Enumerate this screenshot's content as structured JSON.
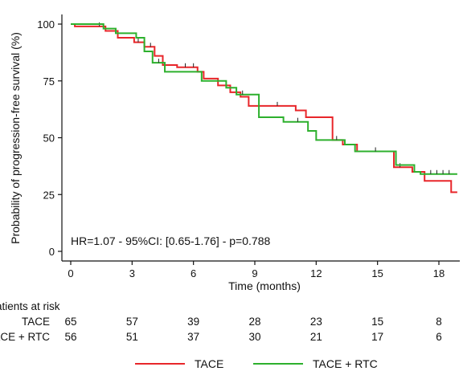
{
  "chart_data": {
    "type": "line",
    "subtype": "kaplan-meier step",
    "xlabel": "Time (months)",
    "ylabel": "Probability of progression-free survival (%)",
    "xlim": [
      0,
      19
    ],
    "ylim": [
      0,
      100
    ],
    "x_ticks": [
      0,
      3,
      6,
      9,
      12,
      15,
      18
    ],
    "y_ticks": [
      0,
      25,
      50,
      75,
      100
    ],
    "grid": false,
    "legend_position": "bottom",
    "annotation": "HR=1.07 - 95%CI: [0.65-1.76] - p=0.788",
    "series": [
      {
        "name": "TACE",
        "color": "#e8262a",
        "steps": [
          [
            0,
            100
          ],
          [
            0.2,
            99
          ],
          [
            1.7,
            97
          ],
          [
            2.3,
            94
          ],
          [
            3.1,
            92
          ],
          [
            3.6,
            90
          ],
          [
            4.1,
            86
          ],
          [
            4.5,
            82
          ],
          [
            5.2,
            81
          ],
          [
            6.2,
            79
          ],
          [
            6.5,
            76
          ],
          [
            7.2,
            73
          ],
          [
            7.8,
            70
          ],
          [
            8.3,
            68
          ],
          [
            8.7,
            64
          ],
          [
            10.3,
            64
          ],
          [
            11.0,
            62
          ],
          [
            11.5,
            59
          ],
          [
            12.5,
            59
          ],
          [
            12.8,
            49
          ],
          [
            13.3,
            47
          ],
          [
            14.0,
            44
          ],
          [
            15.4,
            44
          ],
          [
            15.8,
            37
          ],
          [
            16.7,
            35
          ],
          [
            17.3,
            31
          ],
          [
            18.6,
            26
          ],
          [
            18.9,
            26
          ]
        ],
        "censor_x": [
          1.4,
          3.3,
          3.9,
          5.6,
          6.0,
          8.1,
          10.1,
          16.1
        ]
      },
      {
        "name": "TACE + RTC",
        "color": "#2db02d",
        "steps": [
          [
            0,
            100
          ],
          [
            1.4,
            100
          ],
          [
            1.6,
            98
          ],
          [
            2.2,
            96
          ],
          [
            3.2,
            94
          ],
          [
            3.6,
            88
          ],
          [
            4.0,
            83
          ],
          [
            4.6,
            79
          ],
          [
            6.4,
            75
          ],
          [
            7.0,
            75
          ],
          [
            7.6,
            72
          ],
          [
            8.1,
            69
          ],
          [
            9.2,
            59
          ],
          [
            10.4,
            57
          ],
          [
            11.6,
            53
          ],
          [
            12.0,
            49
          ],
          [
            13.4,
            47
          ],
          [
            13.9,
            44
          ],
          [
            15.6,
            44
          ],
          [
            15.9,
            38
          ],
          [
            16.8,
            35
          ],
          [
            17.1,
            34
          ],
          [
            18.9,
            34
          ]
        ],
        "censor_x": [
          4.3,
          8.4,
          11.1,
          13.0,
          14.9,
          17.6,
          17.9,
          18.2,
          18.5
        ]
      }
    ],
    "risk_table": {
      "title": "Patients at risk",
      "times": [
        0,
        3,
        6,
        9,
        12,
        15,
        18
      ],
      "rows": [
        {
          "label": "TACE",
          "values": [
            65,
            57,
            39,
            28,
            23,
            15,
            8
          ]
        },
        {
          "label": "TACE + RTC",
          "values": [
            56,
            51,
            37,
            30,
            21,
            17,
            6
          ]
        }
      ]
    }
  }
}
